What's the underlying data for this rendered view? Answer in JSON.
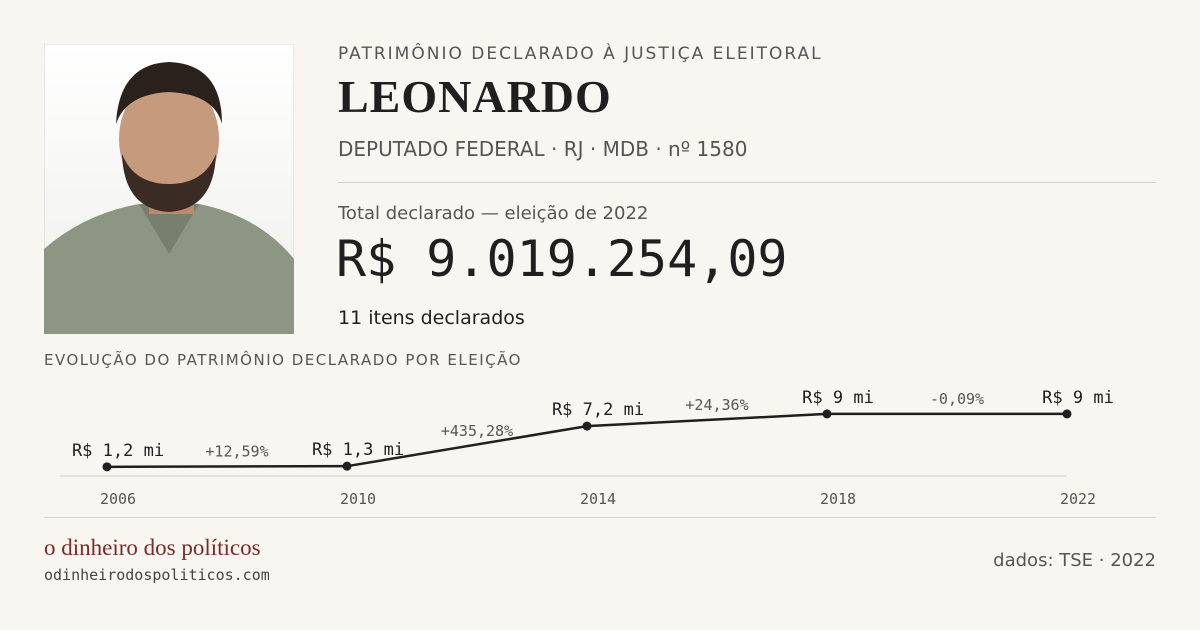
{
  "header": {
    "kicker": "PATRIMÔNIO DECLARADO À JUSTIÇA ELEITORAL",
    "name": "LEONARDO",
    "subtitle": "DEPUTADO FEDERAL · RJ · MDB · nº 1580",
    "total_label": "Total declarado — eleição de 2022",
    "total": "R$ 9.019.254,09",
    "items": "11 itens declarados"
  },
  "chart_data": {
    "type": "line",
    "title": "EVOLUÇÃO DO PATRIMÔNIO DECLARADO POR ELEIÇÃO",
    "categories": [
      "2006",
      "2010",
      "2014",
      "2018",
      "2022"
    ],
    "values": [
      1.2,
      1.3,
      7.2,
      9,
      9
    ],
    "value_labels": [
      "R$ 1,2 mi",
      "R$ 1,3 mi",
      "R$ 7,2 mi",
      "R$ 9 mi",
      "R$ 9 mi"
    ],
    "annotations": [
      "+12,59%",
      "+435,28%",
      "+24,36%",
      "-0,09%"
    ],
    "color": "#1f1f1f",
    "ylim": [
      0,
      12
    ]
  },
  "footer": {
    "brand": "o dinheiro dos políticos",
    "url": "odinheirodospoliticos.com",
    "source": "dados: TSE · 2022"
  }
}
